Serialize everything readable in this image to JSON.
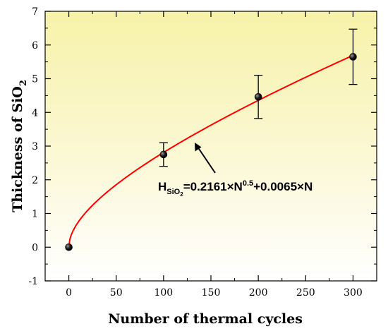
{
  "chart_data": {
    "type": "scatter",
    "title": "",
    "xlabel": "Number of thermal cycles",
    "ylabel_main": "Thickness of SiO",
    "ylabel_sub": "2",
    "xlim": [
      -25,
      325
    ],
    "ylim": [
      -1,
      7
    ],
    "x_ticks": [
      0,
      50,
      100,
      150,
      200,
      250,
      300
    ],
    "y_ticks": [
      -1,
      0,
      1,
      2,
      3,
      4,
      5,
      6,
      7
    ],
    "points": [
      {
        "x": 0,
        "y": 0.0,
        "err": 0.0
      },
      {
        "x": 100,
        "y": 2.75,
        "err": 0.35
      },
      {
        "x": 200,
        "y": 4.46,
        "err": 0.64
      },
      {
        "x": 300,
        "y": 5.65,
        "err": 0.82
      }
    ],
    "fit": {
      "a": 0.2161,
      "p": 0.5,
      "b": 0.0065,
      "color": "#ff0000"
    },
    "equation": {
      "H": "H",
      "sub_main": "SiO",
      "sub_sub": "2",
      "rest1": "=0.2161×N",
      "sup": "0.5",
      "rest2": "+0.0065×N"
    },
    "grid": false,
    "legend": "none",
    "colors": {
      "fit": "#ff0000",
      "marker": "#000000",
      "bg_top": "#f7f2a8",
      "bg_bottom": "#ffffff"
    }
  }
}
